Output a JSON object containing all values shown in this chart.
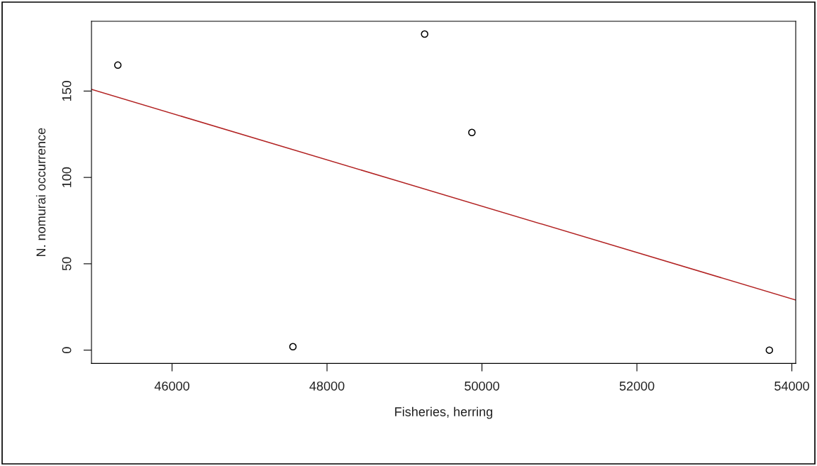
{
  "chart_data": {
    "type": "scatter",
    "xlabel": "Fisheries, herring",
    "ylabel": "N. nomurai occurrence",
    "xlim": [
      44960,
      54050
    ],
    "ylim": [
      -7.7,
      190.4
    ],
    "xticks": [
      46000,
      48000,
      50000,
      52000,
      54000
    ],
    "yticks": [
      0,
      50,
      100,
      150
    ],
    "marker": "circle",
    "grid": false,
    "legend": false,
    "series": [
      {
        "color": "#000000",
        "x": [
          45300,
          47560,
          49260,
          49870,
          53710
        ],
        "values": [
          165,
          2,
          183,
          126,
          0
        ]
      },
      {
        "type": "line",
        "color": "#b22222",
        "x": [
          44960,
          54050
        ],
        "values": [
          151,
          29
        ],
        "marker": "none",
        "line_style": "solid"
      }
    ]
  }
}
